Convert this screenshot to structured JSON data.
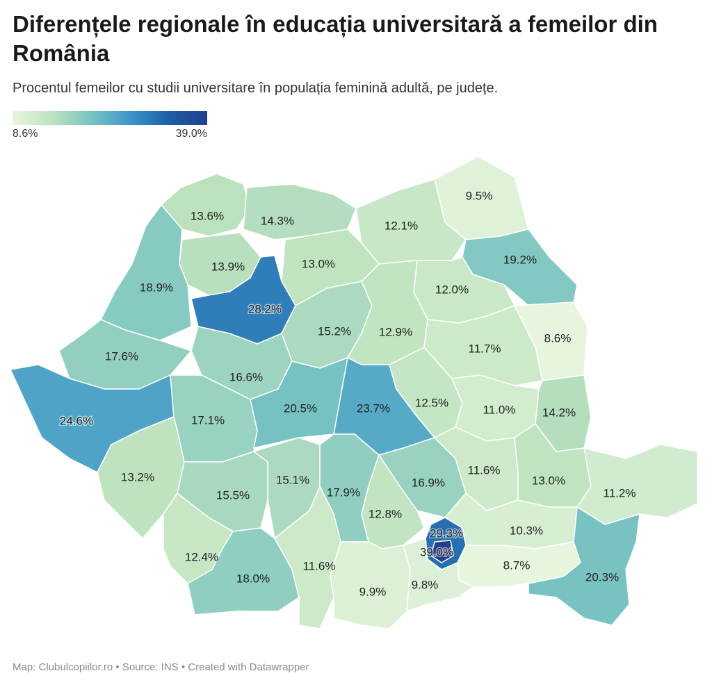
{
  "title": "Diferențele regionale în educația universitară a femeilor din România",
  "subtitle": "Procentul femeilor cu studii universitare în populația feminină adultă, pe județe.",
  "legend": {
    "min_label": "8.6%",
    "max_label": "39.0%",
    "min": 8.6,
    "max": 39.0
  },
  "footer": "Map: Clubulcopiilor.ro • Source: INS • Created with Datawrapper",
  "counties": [
    {
      "label": "9.5%",
      "value": 9.5
    },
    {
      "label": "13.6%",
      "value": 13.6
    },
    {
      "label": "14.3%",
      "value": 14.3
    },
    {
      "label": "12.1%",
      "value": 12.1
    },
    {
      "label": "19.2%",
      "value": 19.2
    },
    {
      "label": "13.9%",
      "value": 13.9
    },
    {
      "label": "13.0%",
      "value": 13.0
    },
    {
      "label": "18.9%",
      "value": 18.9
    },
    {
      "label": "28.2%",
      "value": 28.2
    },
    {
      "label": "12.0%",
      "value": 12.0
    },
    {
      "label": "15.2%",
      "value": 15.2
    },
    {
      "label": "12.9%",
      "value": 12.9
    },
    {
      "label": "8.6%",
      "value": 8.6
    },
    {
      "label": "11.7%",
      "value": 11.7
    },
    {
      "label": "17.6%",
      "value": 17.6
    },
    {
      "label": "16.6%",
      "value": 16.6
    },
    {
      "label": "24.6%",
      "value": 24.6
    },
    {
      "label": "17.1%",
      "value": 17.1
    },
    {
      "label": "20.5%",
      "value": 20.5
    },
    {
      "label": "23.7%",
      "value": 23.7
    },
    {
      "label": "12.5%",
      "value": 12.5
    },
    {
      "label": "11.0%",
      "value": 11.0
    },
    {
      "label": "14.2%",
      "value": 14.2
    },
    {
      "label": "13.2%",
      "value": 13.2
    },
    {
      "label": "15.5%",
      "value": 15.5
    },
    {
      "label": "15.1%",
      "value": 15.1
    },
    {
      "label": "17.9%",
      "value": 17.9
    },
    {
      "label": "16.9%",
      "value": 16.9
    },
    {
      "label": "11.6%",
      "value": 11.6
    },
    {
      "label": "13.0%",
      "value": 13.0
    },
    {
      "label": "11.2%",
      "value": 11.2
    },
    {
      "label": "12.8%",
      "value": 12.8
    },
    {
      "label": "29.3%",
      "value": 29.3
    },
    {
      "label": "10.3%",
      "value": 10.3
    },
    {
      "label": "39.0%",
      "value": 39.0
    },
    {
      "label": "12.4%",
      "value": 12.4
    },
    {
      "label": "18.0%",
      "value": 18.0
    },
    {
      "label": "11.6%",
      "value": 11.6
    },
    {
      "label": "8.7%",
      "value": 8.7
    },
    {
      "label": "9.9%",
      "value": 9.9
    },
    {
      "label": "9.8%",
      "value": 9.8
    },
    {
      "label": "20.3%",
      "value": 20.3
    }
  ]
}
